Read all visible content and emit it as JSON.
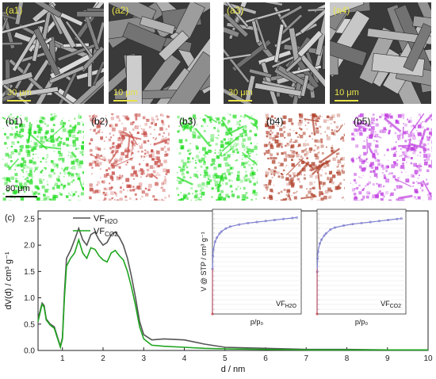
{
  "sem_panels": [
    {
      "label": "(a1)",
      "scale": "30 μm",
      "tone": "#8a8a8a"
    },
    {
      "label": "(a2)",
      "scale": "10 μm",
      "tone": "#7c7c7c"
    },
    {
      "label": "(a3)",
      "scale": "30 μm",
      "tone": "#8d8d8d"
    },
    {
      "label": "(a4)",
      "scale": "10 μm",
      "tone": "#828282"
    }
  ],
  "map_panels": [
    {
      "label": "(b1)",
      "color": "#22dd22"
    },
    {
      "label": "(b2)",
      "color": "#c8504a"
    },
    {
      "label": "(b3)",
      "color": "#22dd22"
    },
    {
      "label": "(b4)",
      "color": "#b0402a"
    },
    {
      "label": "(b5)",
      "color": "#c040e0"
    }
  ],
  "map_scale": "80 μm",
  "colors": {
    "sem_label": "#e8e24a",
    "h2o": "#555555",
    "co2": "#1fa51f",
    "inset_line": "#8080d0",
    "inset_start": "#d03030"
  },
  "chart_data": {
    "type": "line",
    "panel_label": "(c)",
    "xlabel": "d / nm",
    "ylabel": "dV(d) / cm³ g⁻¹",
    "xlim": [
      0.4,
      10
    ],
    "ylim": [
      0,
      2.65
    ],
    "xticks": [
      "1",
      "2",
      "3",
      "4",
      "5",
      "6",
      "7",
      "8",
      "9",
      "10"
    ],
    "yticks": [
      "0.0",
      "0.5",
      "1.0",
      "1.5",
      "2.0",
      "2.5"
    ],
    "legend": [
      "VF",
      "VF"
    ],
    "legend_subscripts": [
      "H2O",
      "CO2"
    ],
    "series": [
      {
        "name": "VF_H2O",
        "color": "#555555",
        "x": [
          0.4,
          0.5,
          0.55,
          0.6,
          0.7,
          0.8,
          0.9,
          0.95,
          1.0,
          1.05,
          1.1,
          1.2,
          1.3,
          1.4,
          1.5,
          1.6,
          1.7,
          1.8,
          1.9,
          2.0,
          2.1,
          2.2,
          2.3,
          2.4,
          2.5,
          2.6,
          2.7,
          2.8,
          2.9,
          3.0,
          3.2,
          3.5,
          4.0,
          4.5,
          5.0,
          6.0,
          7.0,
          8.0,
          9.0,
          10.0
        ],
        "y": [
          0.6,
          0.9,
          0.85,
          0.6,
          0.5,
          0.45,
          0.2,
          0.08,
          0.25,
          1.1,
          1.75,
          1.9,
          2.1,
          2.32,
          2.1,
          2.0,
          2.2,
          2.25,
          2.1,
          2.0,
          2.05,
          2.2,
          2.25,
          2.15,
          2.0,
          1.75,
          1.4,
          1.0,
          0.55,
          0.3,
          0.2,
          0.22,
          0.2,
          0.12,
          0.06,
          0.04,
          0.02,
          0.02,
          0.01,
          0.01
        ]
      },
      {
        "name": "VF_CO2",
        "color": "#1fa51f",
        "x": [
          0.4,
          0.5,
          0.55,
          0.6,
          0.7,
          0.8,
          0.9,
          0.95,
          1.0,
          1.05,
          1.1,
          1.2,
          1.3,
          1.4,
          1.5,
          1.6,
          1.7,
          1.8,
          1.9,
          2.0,
          2.1,
          2.2,
          2.3,
          2.4,
          2.5,
          2.6,
          2.7,
          2.8,
          2.9,
          3.0,
          3.2,
          3.5,
          4.0,
          4.5,
          5.0,
          6.0,
          7.0,
          8.0,
          9.0,
          10.0
        ],
        "y": [
          0.55,
          0.88,
          0.82,
          0.58,
          0.48,
          0.42,
          0.18,
          0.06,
          0.22,
          1.0,
          1.6,
          1.75,
          1.85,
          2.1,
          1.85,
          1.75,
          1.95,
          1.92,
          1.8,
          1.72,
          1.68,
          1.85,
          1.9,
          1.8,
          1.72,
          1.5,
          1.2,
          0.85,
          0.45,
          0.22,
          0.1,
          0.08,
          0.06,
          0.04,
          0.03,
          0.02,
          0.01,
          0.01,
          0.01,
          0.01
        ]
      }
    ],
    "insets": [
      {
        "xlabel": "p/p₀",
        "ylabel": "V @ STP / cm³ g⁻¹",
        "tag": "VF",
        "tag_sub": "H2O",
        "color": "#8080d0",
        "p": [
          0.0,
          0.001,
          0.005,
          0.01,
          0.03,
          0.05,
          0.08,
          0.1,
          0.15,
          0.2,
          0.3,
          0.4,
          0.5,
          0.6,
          0.7,
          0.8,
          0.9,
          0.95
        ],
        "v": [
          0.0,
          0.45,
          0.58,
          0.64,
          0.72,
          0.76,
          0.8,
          0.82,
          0.85,
          0.87,
          0.89,
          0.905,
          0.915,
          0.925,
          0.935,
          0.945,
          0.955,
          0.96
        ]
      },
      {
        "xlabel": "p/p₀",
        "ylabel": "",
        "tag": "VF",
        "tag_sub": "CO2",
        "color": "#8080d0",
        "p": [
          0.0,
          0.001,
          0.005,
          0.01,
          0.03,
          0.05,
          0.08,
          0.1,
          0.15,
          0.2,
          0.3,
          0.4,
          0.5,
          0.6,
          0.7,
          0.8,
          0.9,
          0.95
        ],
        "v": [
          0.0,
          0.42,
          0.55,
          0.62,
          0.7,
          0.74,
          0.78,
          0.8,
          0.84,
          0.86,
          0.88,
          0.895,
          0.905,
          0.915,
          0.925,
          0.935,
          0.945,
          0.95
        ]
      }
    ]
  }
}
